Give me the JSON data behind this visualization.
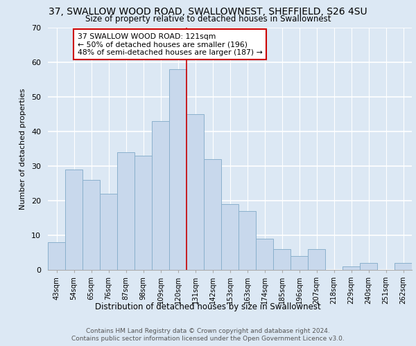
{
  "title1": "37, SWALLOW WOOD ROAD, SWALLOWNEST, SHEFFIELD, S26 4SU",
  "title2": "Size of property relative to detached houses in Swallownest",
  "xlabel": "Distribution of detached houses by size in Swallownest",
  "ylabel": "Number of detached properties",
  "categories": [
    "43sqm",
    "54sqm",
    "65sqm",
    "76sqm",
    "87sqm",
    "98sqm",
    "109sqm",
    "120sqm",
    "131sqm",
    "142sqm",
    "153sqm",
    "163sqm",
    "174sqm",
    "185sqm",
    "196sqm",
    "207sqm",
    "218sqm",
    "229sqm",
    "240sqm",
    "251sqm",
    "262sqm"
  ],
  "values": [
    8,
    29,
    26,
    22,
    34,
    33,
    43,
    58,
    45,
    32,
    19,
    17,
    9,
    6,
    4,
    6,
    0,
    1,
    2,
    0,
    2
  ],
  "bar_color": "#c8d8ec",
  "bar_edge_color": "#8ab0cc",
  "vline_x_index": 7,
  "vline_color": "#cc0000",
  "annotation_text": "37 SWALLOW WOOD ROAD: 121sqm\n← 50% of detached houses are smaller (196)\n48% of semi-detached houses are larger (187) →",
  "annotation_box_color": "#ffffff",
  "annotation_box_edge": "#cc0000",
  "ylim": [
    0,
    70
  ],
  "yticks": [
    0,
    10,
    20,
    30,
    40,
    50,
    60,
    70
  ],
  "footer1": "Contains HM Land Registry data © Crown copyright and database right 2024.",
  "footer2": "Contains public sector information licensed under the Open Government Licence v3.0.",
  "bg_color": "#dce8f4",
  "plot_bg_color": "#dce8f4"
}
